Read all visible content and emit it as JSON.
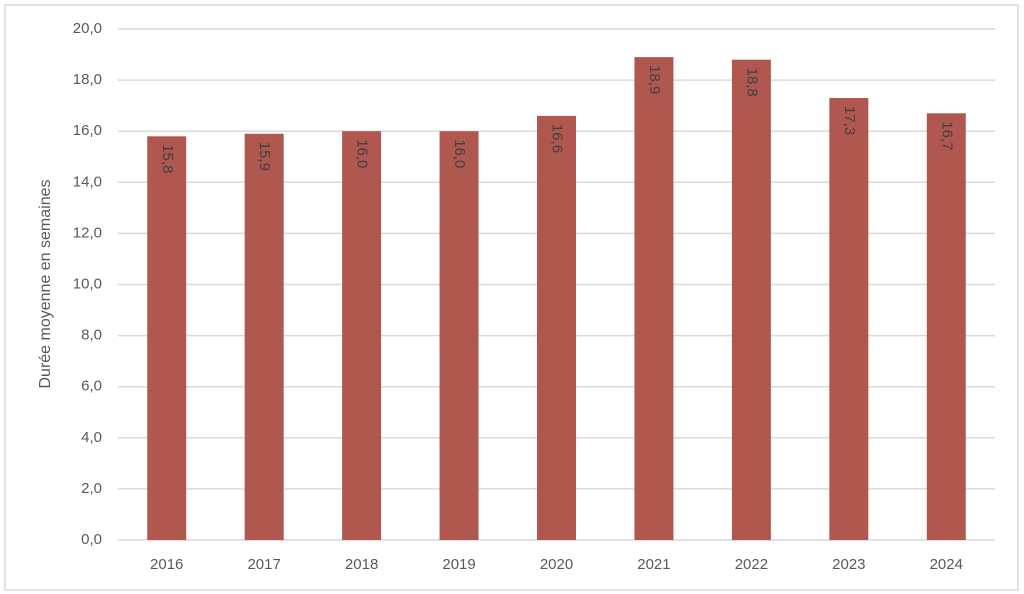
{
  "chart_data": {
    "type": "bar",
    "y_label": "Durée moyenne en semaines",
    "categories": [
      "2016",
      "2017",
      "2018",
      "2019",
      "2020",
      "2021",
      "2022",
      "2023",
      "2024"
    ],
    "values": [
      15.8,
      15.9,
      16.0,
      16.0,
      16.6,
      18.9,
      18.8,
      17.3,
      16.7
    ],
    "value_labels": [
      "15,8",
      "15,9",
      "16,0",
      "16,0",
      "16,6",
      "18,9",
      "18,8",
      "17,3",
      "16,7"
    ],
    "color": "#b05850",
    "ylim": [
      0,
      20
    ],
    "yticks": [
      {
        "value": 0,
        "label": "0,0"
      },
      {
        "value": 2,
        "label": "2,0"
      },
      {
        "value": 4,
        "label": "4,0"
      },
      {
        "value": 6,
        "label": "6,0"
      },
      {
        "value": 8,
        "label": "8,0"
      },
      {
        "value": 10,
        "label": "10,0"
      },
      {
        "value": 12,
        "label": "12,0"
      },
      {
        "value": 14,
        "label": "14,0"
      },
      {
        "value": 16,
        "label": "16,0"
      },
      {
        "value": 18,
        "label": "18,0"
      },
      {
        "value": 20,
        "label": "20,0"
      }
    ],
    "grid": true
  }
}
